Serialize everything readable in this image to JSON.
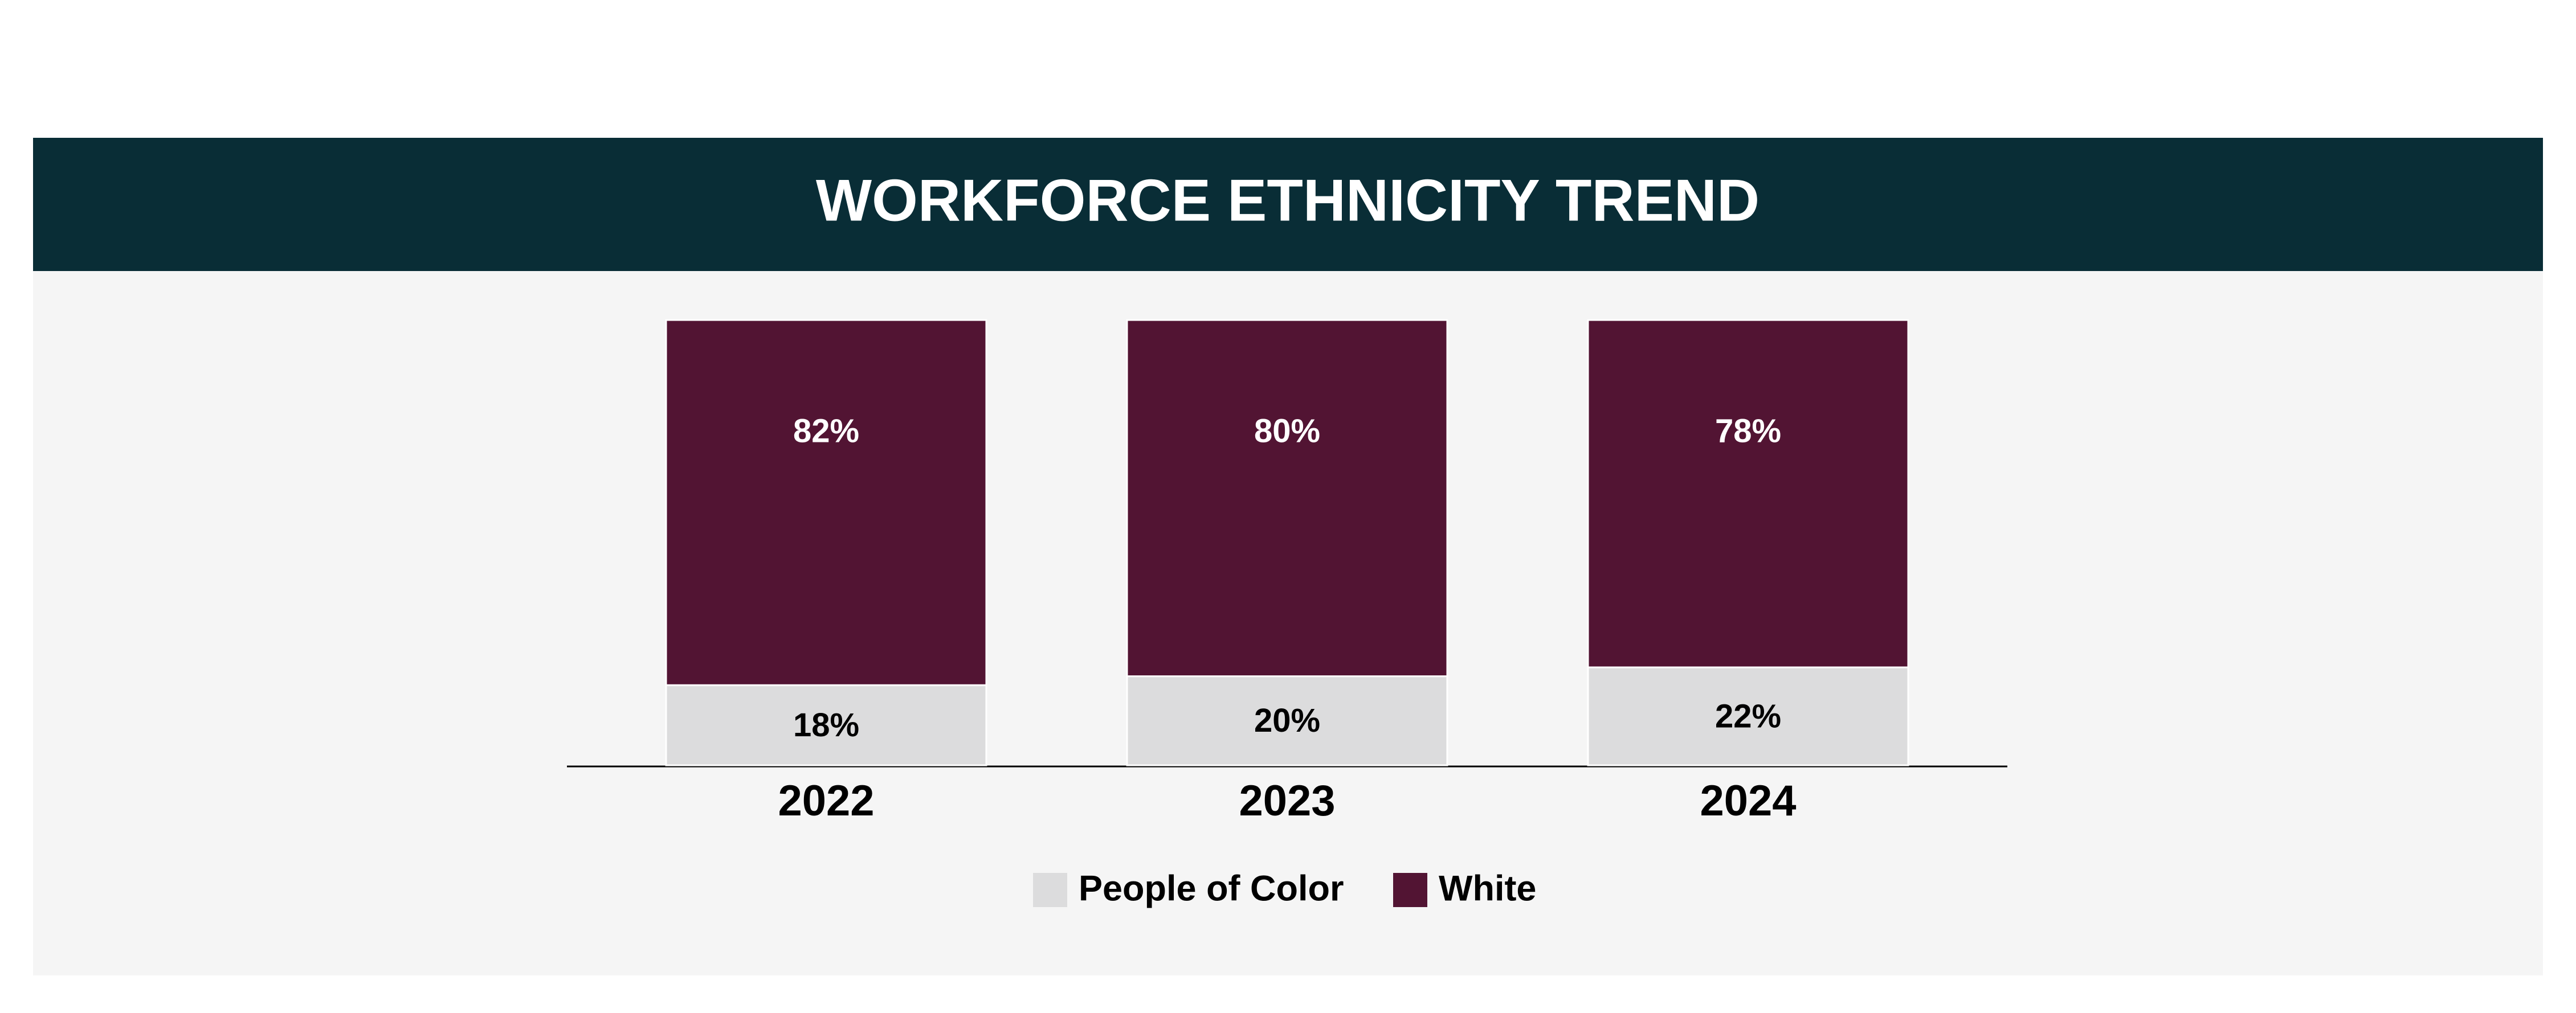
{
  "chart_data": {
    "type": "stacked_bar",
    "title": "WORKFORCE ETHNICITY TREND",
    "categories": [
      "2022",
      "2023",
      "2024"
    ],
    "series": [
      {
        "name": "People of Color",
        "color": "#dcdcdd",
        "values": [
          18,
          20,
          22
        ],
        "value_labels": [
          "18%",
          "20%",
          "22%"
        ]
      },
      {
        "name": "White",
        "color": "#521433",
        "values": [
          82,
          80,
          78
        ],
        "value_labels": [
          "82%",
          "80%",
          "78%"
        ]
      }
    ],
    "ylim": [
      0,
      100
    ],
    "legend": "bottom"
  }
}
